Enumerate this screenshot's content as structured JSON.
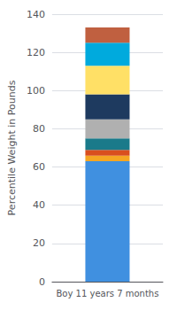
{
  "chart_data": {
    "type": "bar",
    "categories": [
      "Boy 11 years 7 months"
    ],
    "ylabel": "Percentile Weight in Pounds",
    "stacked": true,
    "series": [
      {
        "color": "#4090E0",
        "values": [
          63
        ]
      },
      {
        "color": "#F5A623",
        "values": [
          3
        ]
      },
      {
        "color": "#D94F1E",
        "values": [
          3
        ]
      },
      {
        "color": "#1A7A8A",
        "values": [
          6
        ]
      },
      {
        "color": "#B0B0B0",
        "values": [
          10
        ]
      },
      {
        "color": "#1E3A5F",
        "values": [
          13
        ]
      },
      {
        "color": "#FFE066",
        "values": [
          15
        ]
      },
      {
        "color": "#00AADD",
        "values": [
          12
        ]
      },
      {
        "color": "#C06040",
        "values": [
          8
        ]
      }
    ],
    "ylim": [
      0,
      140
    ],
    "yticks": [
      0,
      20,
      40,
      60,
      80,
      100,
      120,
      140
    ],
    "grid": true
  }
}
